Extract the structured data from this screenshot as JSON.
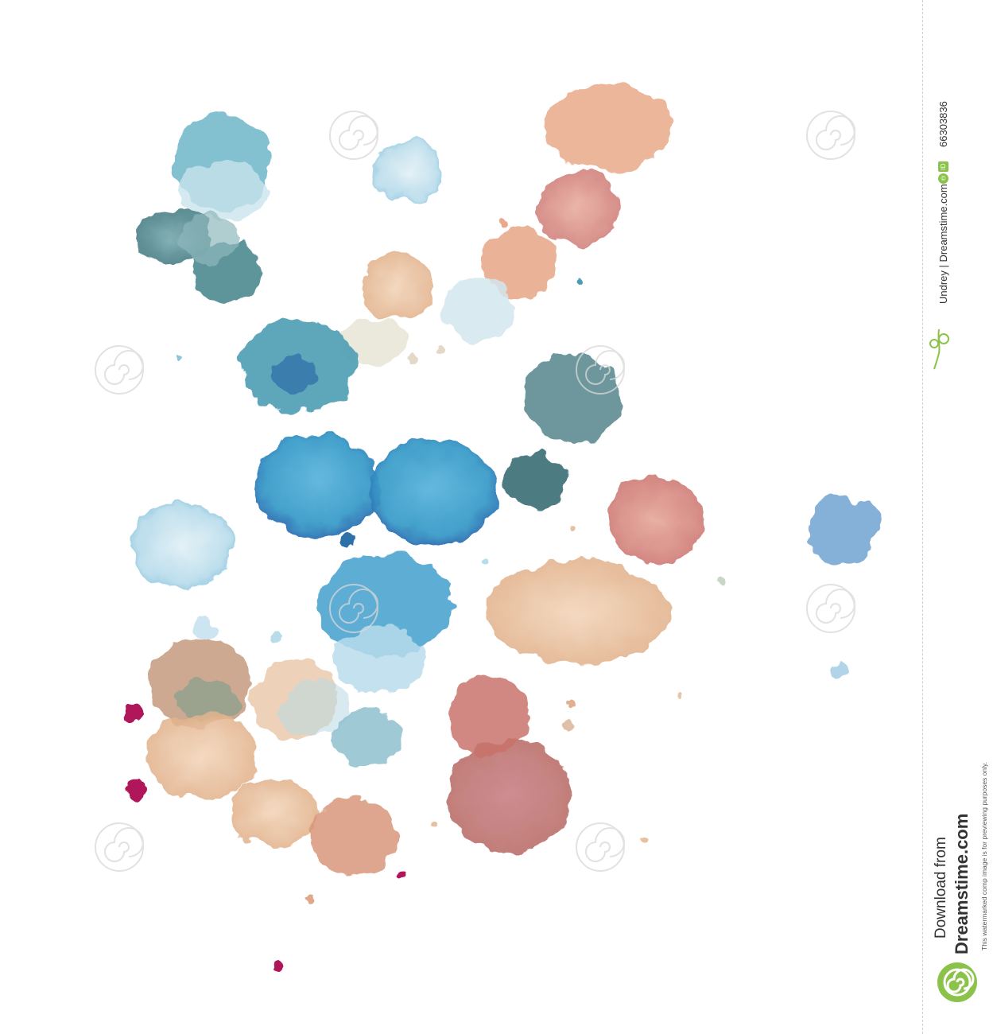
{
  "image_id_label": "ID",
  "image_id": "66303836",
  "copyright_symbol": "©",
  "credit": "Undrey | Dreamstime.com",
  "download_line1": "Download from",
  "download_line2": "Dreamstime.com",
  "disclaimer": "This watermarked comp image is for previewing purposes only.",
  "watermark_text": "dreamstime",
  "colors": {
    "accent_green": "#8bc34a",
    "teal_blue": "#3a9cc8",
    "dark_teal": "#3f7f86",
    "peach": "#e8b48f",
    "rose": "#cf7e78",
    "magenta": "#b0125a"
  },
  "icons": [
    "scissors-icon",
    "dreamstime-logo-icon"
  ]
}
